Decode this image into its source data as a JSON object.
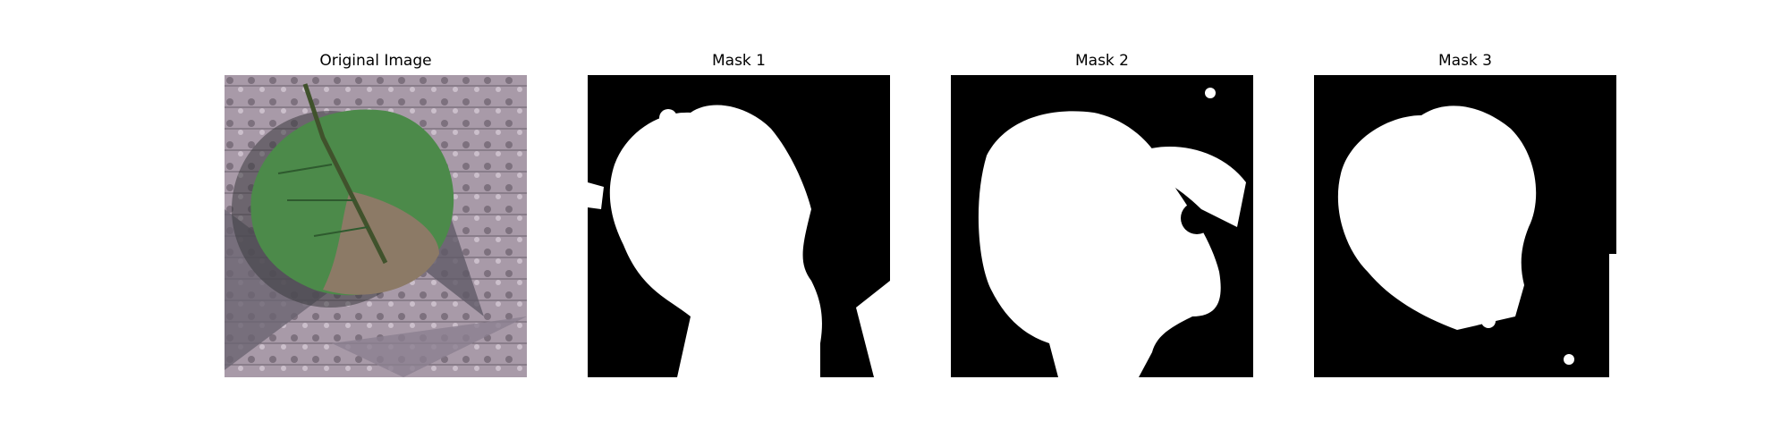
{
  "panels": [
    {
      "title": "Original Image",
      "kind": "photo"
    },
    {
      "title": "Mask 1",
      "kind": "mask"
    },
    {
      "title": "Mask 2",
      "kind": "mask"
    },
    {
      "title": "Mask 3",
      "kind": "mask"
    }
  ]
}
